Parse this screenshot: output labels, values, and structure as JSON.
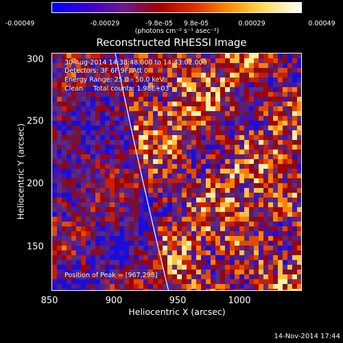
{
  "colorbar": {
    "ticks": [
      "-0.00049",
      "-0.00029",
      "-9.8e-05",
      "9.8e-05",
      "0.00029",
      "0.00049"
    ],
    "unit_label": "(photons cm⁻² s⁻¹ asec⁻²)",
    "colors": [
      "#0000ff",
      "#3a00c8",
      "#6a1a8c",
      "#a00000",
      "#e03000",
      "#ff9000",
      "#ffe060",
      "#ffffff"
    ]
  },
  "title": "Reconstructed RHESSI Image",
  "info": {
    "line1": "30-Aug-2014 14:38:48.000 to 14:43:02.000",
    "line2": "Detectors: 3F 6F 9F, Att 0",
    "line3": "Energy Range: 25.0 - 50.0 keV",
    "line4": "Clean     Total counts: 1.98E+03",
    "peak": "Position of Peak = [967,298]"
  },
  "axes": {
    "xlabel": "Heliocentric X (arcsec)",
    "ylabel": "Heliocentric Y (arcsec)",
    "xticks": [
      "850",
      "900",
      "950",
      "1000"
    ],
    "yticks": [
      "150",
      "200",
      "250",
      "300"
    ],
    "xlim": [
      850,
      1040
    ],
    "ylim": [
      112,
      306
    ]
  },
  "timestamp": "14-Nov-2014 17:44"
}
